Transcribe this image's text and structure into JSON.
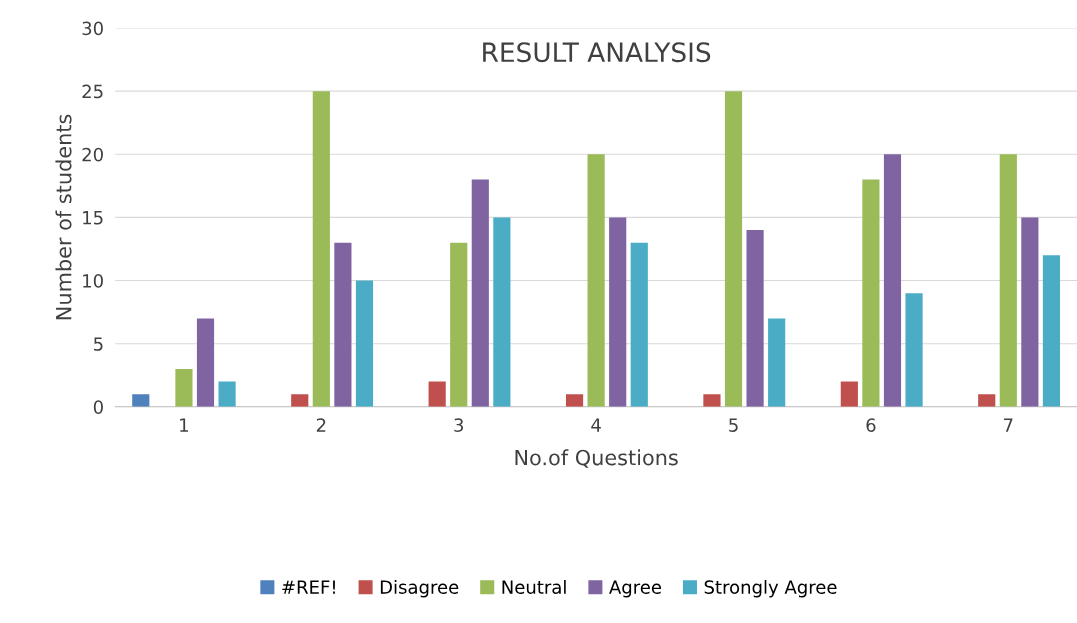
{
  "chart_data": {
    "type": "bar",
    "title": "RESULT ANALYSIS",
    "xlabel": "No.of Questions",
    "ylabel": "Number of students",
    "categories": [
      "1",
      "2",
      "3",
      "4",
      "5",
      "6",
      "7"
    ],
    "series": [
      {
        "name": "#REF!",
        "color": "#4f81bd",
        "values": [
          1,
          0,
          0,
          0,
          0,
          0,
          0
        ]
      },
      {
        "name": "Disagree",
        "color": "#c0504d",
        "values": [
          0,
          1,
          2,
          1,
          1,
          2,
          1
        ]
      },
      {
        "name": "Neutral",
        "color": "#9bbb59",
        "values": [
          3,
          25,
          13,
          20,
          25,
          18,
          20
        ]
      },
      {
        "name": "Agree",
        "color": "#8064a2",
        "values": [
          7,
          13,
          18,
          15,
          14,
          20,
          15
        ]
      },
      {
        "name": "Strongly Agree",
        "color": "#4bacc6",
        "values": [
          2,
          10,
          15,
          13,
          7,
          9,
          12
        ]
      }
    ],
    "ylim": [
      0,
      30
    ],
    "yticks": [
      0,
      5,
      10,
      15,
      20,
      25,
      30
    ],
    "grid": "y",
    "legend": "bottom"
  }
}
